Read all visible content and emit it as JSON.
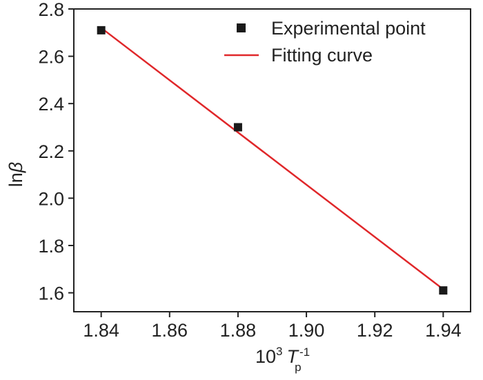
{
  "chart_data": {
    "type": "scatter",
    "title": "",
    "xlabel": {
      "base": "10",
      "power": "3",
      "symbol": "T",
      "subscript": "p",
      "superscript": "-1"
    },
    "ylabel": {
      "prefix": "ln",
      "symbol": "β"
    },
    "xlim": [
      1.832,
      1.948
    ],
    "ylim": [
      1.52,
      2.8
    ],
    "xticks": [
      "1.84",
      "1.86",
      "1.88",
      "1.90",
      "1.92",
      "1.94"
    ],
    "yticks": [
      "1.6",
      "1.8",
      "2.0",
      "2.2",
      "2.4",
      "2.6",
      "2.8"
    ],
    "grid": false,
    "legend_position": "top-right",
    "series": [
      {
        "name": "Experimental point",
        "kind": "scatter",
        "marker": "square",
        "color": "#1a1a1a",
        "x": [
          1.84,
          1.88,
          1.94
        ],
        "y": [
          2.71,
          2.3,
          1.61
        ]
      },
      {
        "name": "Fitting curve",
        "kind": "line",
        "color": "#e0272a",
        "x": [
          1.84,
          1.94
        ],
        "y": [
          2.72,
          1.615
        ]
      }
    ]
  }
}
